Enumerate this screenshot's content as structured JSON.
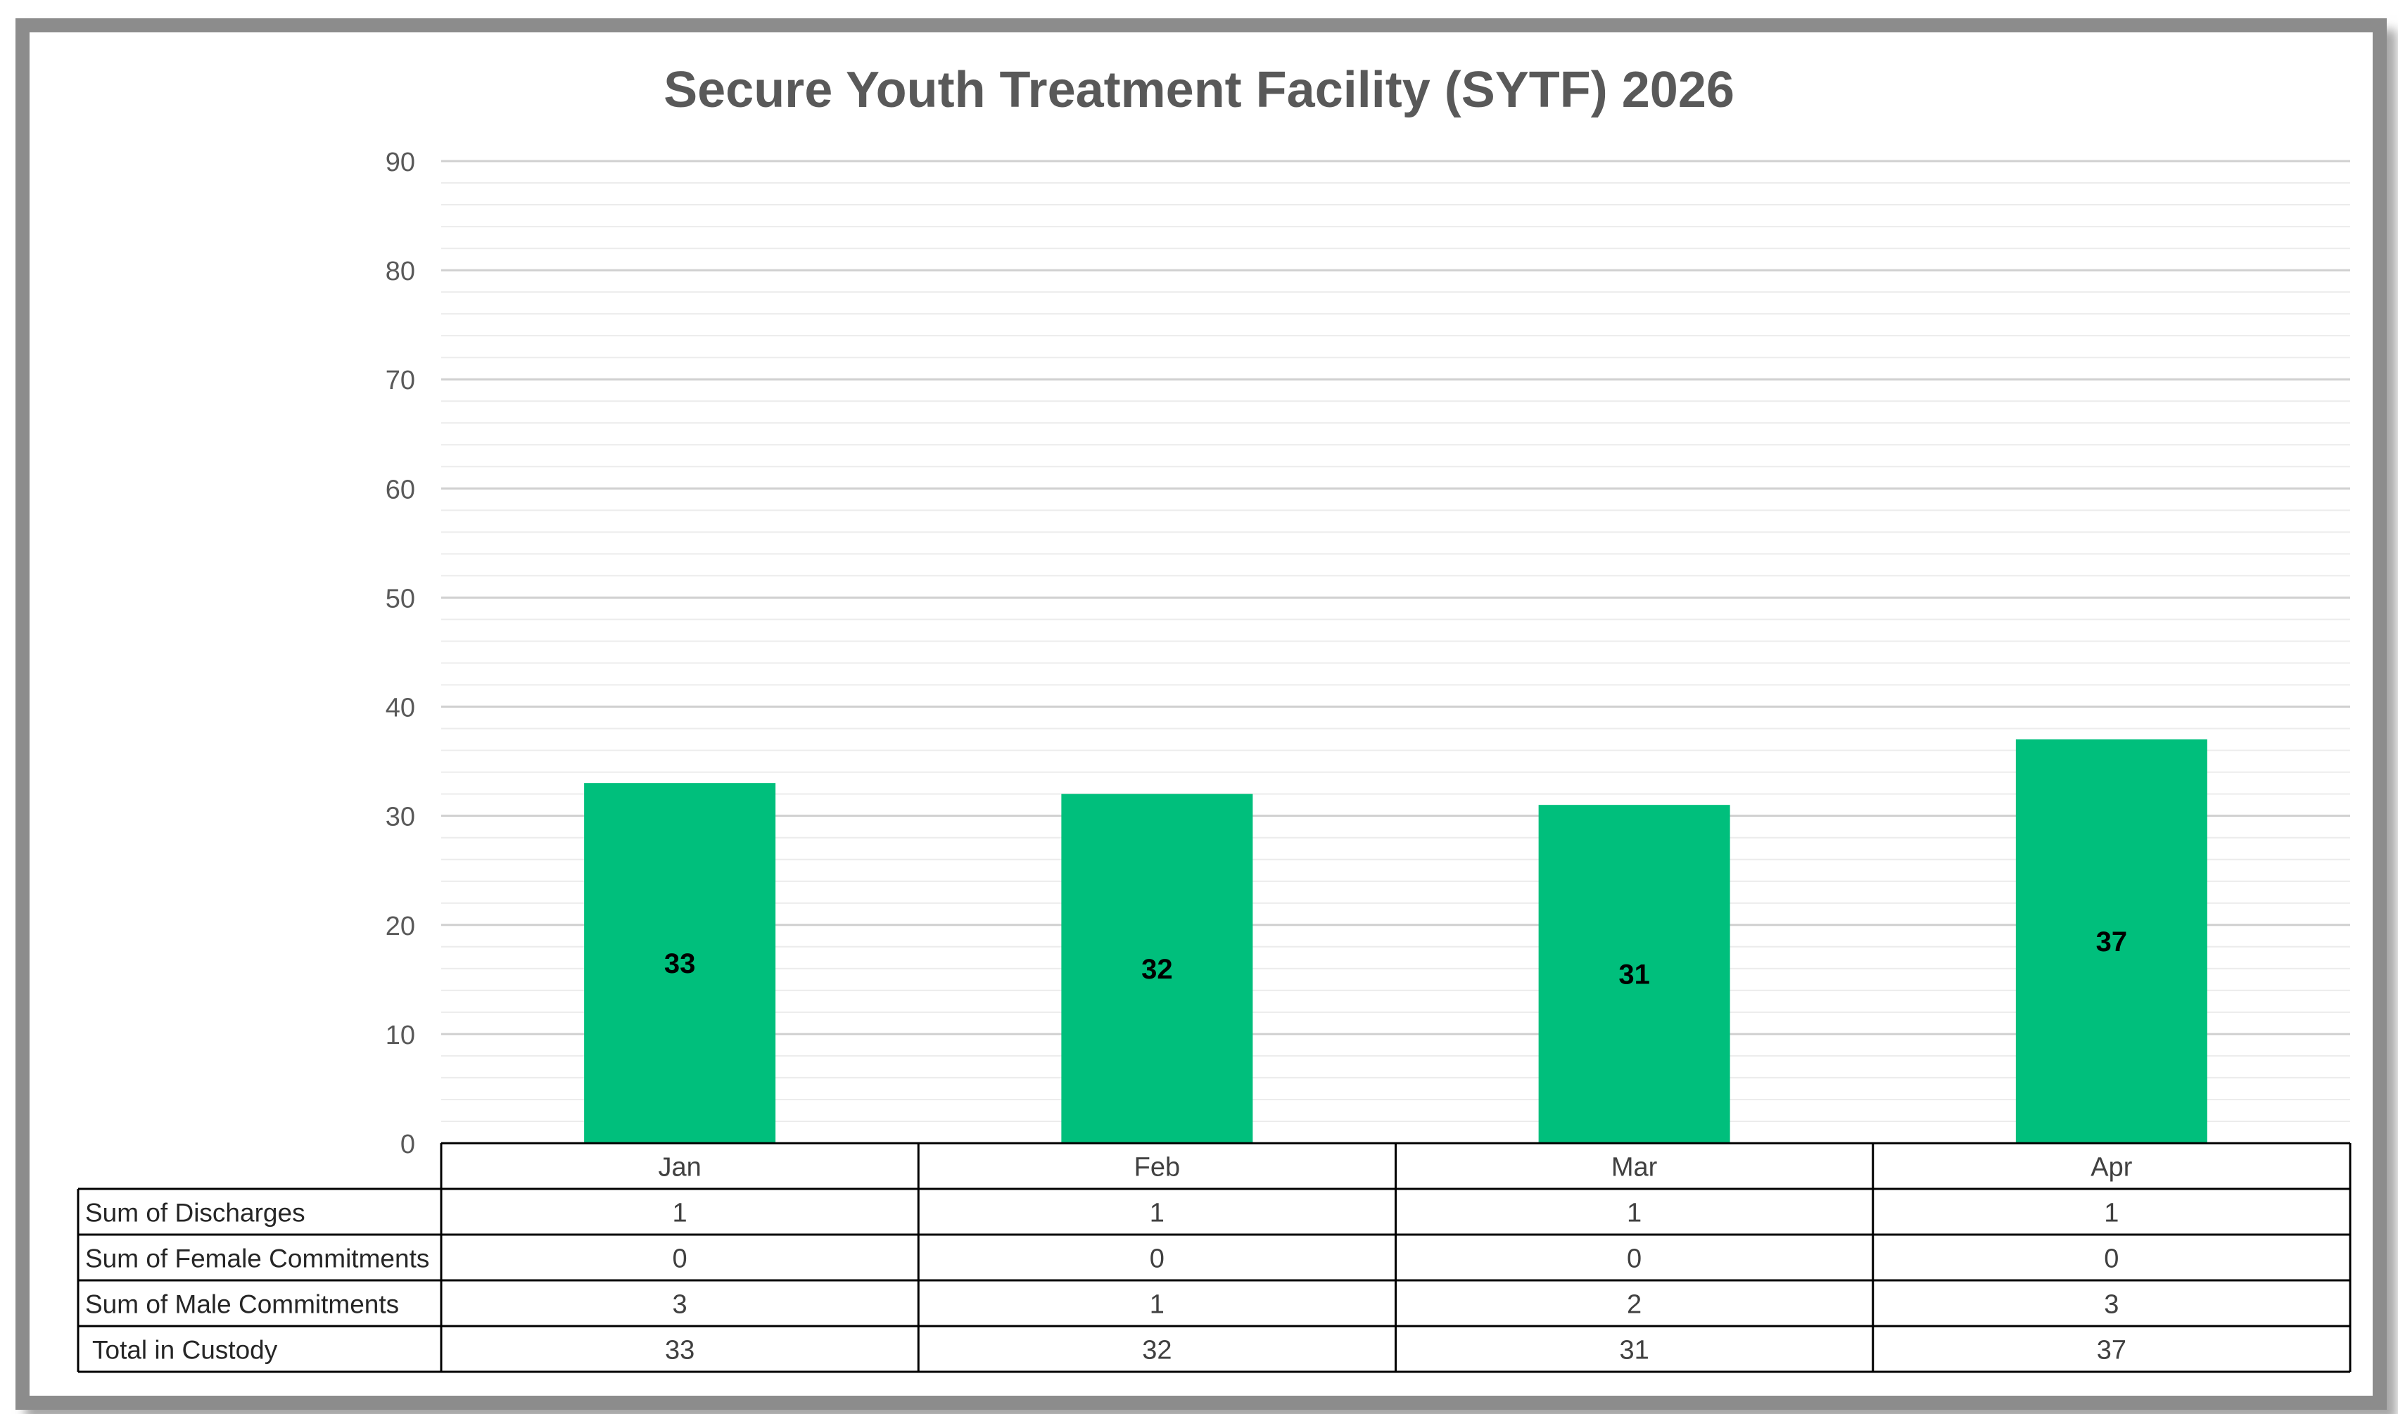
{
  "chart_data": {
    "type": "bar",
    "title": "Secure Youth Treatment Facility (SYTF) 2026",
    "categories": [
      "Jan",
      "Feb",
      "Mar",
      "Apr"
    ],
    "series": [
      {
        "values": [
          33,
          32,
          31,
          37
        ]
      }
    ],
    "ylim": [
      0,
      90
    ],
    "y_ticks": [
      "0",
      "10",
      "20",
      "30",
      "40",
      "50",
      "60",
      "70",
      "80",
      "90"
    ],
    "grid": true,
    "bar_color": "#00BF7C",
    "data_table": {
      "rows": [
        {
          "label": "Sum of Discharges",
          "values": [
            "1",
            "1",
            "1",
            "1"
          ]
        },
        {
          "label": "Sum of Female Commitments",
          "values": [
            "0",
            "0",
            "0",
            "0"
          ]
        },
        {
          "label": "Sum of Male Commitments",
          "values": [
            "3",
            "1",
            "2",
            "3"
          ]
        },
        {
          "label": "Total in Custody",
          "values": [
            "33",
            "32",
            "31",
            "37"
          ]
        }
      ]
    }
  }
}
